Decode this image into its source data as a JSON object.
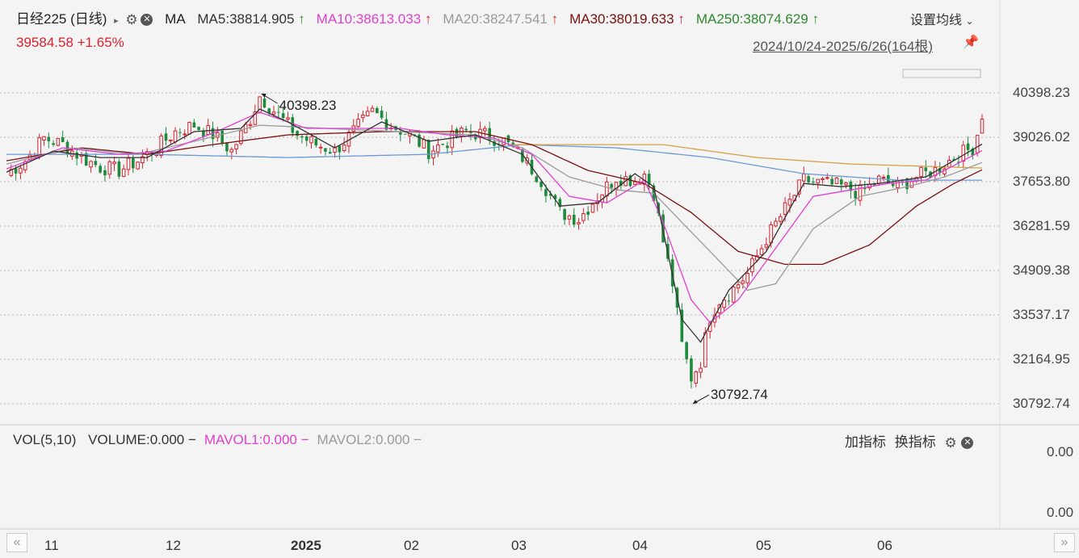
{
  "header": {
    "title": "日经225 (日线)",
    "ma_label": "MA",
    "ma_items": [
      {
        "label": "MA5:38814.905",
        "arrow": "↑",
        "color": "#333333"
      },
      {
        "label": "MA10:38613.033",
        "arrow": "↑",
        "color": "#e040d0"
      },
      {
        "label": "MA20:38247.541",
        "arrow": "↑",
        "color": "#9a9a9a"
      },
      {
        "label": "MA30:38019.633",
        "arrow": "↑",
        "color": "#7a1010"
      },
      {
        "label": "MA250:38074.629",
        "arrow": "↑",
        "color": "#2e8a2e"
      }
    ],
    "settings_label": "设置均线",
    "price": "39584.58 +1.65%",
    "range": "2024/10/24-2025/6/26(164根)"
  },
  "volume_panel": {
    "title": "VOL(5,10)",
    "items": [
      {
        "label": "VOLUME:0.000",
        "color": "#333333"
      },
      {
        "label": "MAVOL1:0.000",
        "color": "#e040d0"
      },
      {
        "label": "MAVOL2:0.000",
        "color": "#9a9a9a"
      }
    ],
    "add_indicator": "加指标",
    "switch_indicator": "换指标",
    "yticks": [
      "0.00",
      "0.00"
    ]
  },
  "colors": {
    "up": "#d9232e",
    "down": "#1e8a3c",
    "ma250": "#d4a246",
    "ma_blue": "#6a9ad4"
  },
  "chart_data": {
    "type": "candlestick",
    "y_ticks": [
      "40398.23",
      "39026.02",
      "37653.80",
      "36281.59",
      "34909.38",
      "33537.17",
      "32164.95",
      "30792.74"
    ],
    "ylim": [
      30792.74,
      40398.23
    ],
    "x_ticks": [
      "11",
      "12",
      "2025",
      "02",
      "03",
      "04",
      "05",
      "06"
    ],
    "annotations": [
      {
        "text": "40398.23",
        "type": "high"
      },
      {
        "text": "30792.74",
        "type": "low"
      }
    ],
    "close_path": [
      [
        0,
        37900
      ],
      [
        4,
        38300
      ],
      [
        8,
        39000
      ],
      [
        12,
        38800
      ],
      [
        16,
        38400
      ],
      [
        20,
        38100
      ],
      [
        24,
        38000
      ],
      [
        28,
        38300
      ],
      [
        32,
        38700
      ],
      [
        36,
        39200
      ],
      [
        40,
        39400
      ],
      [
        44,
        39100
      ],
      [
        48,
        38600
      ],
      [
        52,
        39600
      ],
      [
        54,
        40300
      ],
      [
        58,
        39700
      ],
      [
        62,
        39100
      ],
      [
        66,
        38800
      ],
      [
        70,
        38600
      ],
      [
        74,
        39200
      ],
      [
        78,
        39800
      ],
      [
        82,
        39400
      ],
      [
        86,
        39100
      ],
      [
        90,
        38600
      ],
      [
        94,
        38900
      ],
      [
        98,
        39200
      ],
      [
        102,
        39100
      ],
      [
        106,
        38900
      ],
      [
        110,
        38400
      ],
      [
        114,
        37700
      ],
      [
        118,
        36700
      ],
      [
        122,
        36500
      ],
      [
        126,
        37200
      ],
      [
        130,
        37800
      ],
      [
        134,
        37700
      ],
      [
        136,
        37900
      ],
      [
        138,
        37300
      ],
      [
        140,
        35800
      ],
      [
        142,
        34500
      ],
      [
        144,
        32600
      ],
      [
        146,
        31600
      ],
      [
        148,
        32100
      ],
      [
        150,
        33500
      ],
      [
        152,
        34000
      ],
      [
        154,
        34200
      ],
      [
        158,
        34800
      ],
      [
        162,
        35900
      ],
      [
        166,
        36800
      ],
      [
        170,
        37700
      ],
      [
        174,
        37600
      ],
      [
        178,
        37500
      ],
      [
        182,
        37300
      ],
      [
        186,
        37700
      ],
      [
        190,
        37500
      ],
      [
        194,
        37800
      ],
      [
        198,
        38000
      ],
      [
        202,
        38400
      ],
      [
        206,
        38700
      ],
      [
        208,
        39584.58
      ]
    ],
    "ma5_path": [
      [
        0,
        37950
      ],
      [
        10,
        38600
      ],
      [
        20,
        38400
      ],
      [
        30,
        38400
      ],
      [
        40,
        39200
      ],
      [
        50,
        39300
      ],
      [
        54,
        39900
      ],
      [
        60,
        39500
      ],
      [
        70,
        38700
      ],
      [
        80,
        39500
      ],
      [
        90,
        38900
      ],
      [
        100,
        39100
      ],
      [
        110,
        38500
      ],
      [
        118,
        36900
      ],
      [
        126,
        37000
      ],
      [
        134,
        37900
      ],
      [
        138,
        37500
      ],
      [
        144,
        33400
      ],
      [
        148,
        32700
      ],
      [
        154,
        34300
      ],
      [
        162,
        35500
      ],
      [
        170,
        37600
      ],
      [
        178,
        37500
      ],
      [
        186,
        37600
      ],
      [
        196,
        37800
      ],
      [
        208,
        38815
      ]
    ],
    "ma10_path": [
      [
        0,
        38050
      ],
      [
        12,
        38700
      ],
      [
        24,
        38500
      ],
      [
        34,
        38600
      ],
      [
        44,
        39150
      ],
      [
        54,
        39800
      ],
      [
        64,
        39300
      ],
      [
        74,
        39300
      ],
      [
        84,
        39300
      ],
      [
        94,
        39100
      ],
      [
        104,
        39000
      ],
      [
        112,
        38500
      ],
      [
        120,
        37200
      ],
      [
        128,
        37000
      ],
      [
        136,
        37700
      ],
      [
        140,
        36400
      ],
      [
        146,
        34000
      ],
      [
        150,
        33300
      ],
      [
        156,
        34000
      ],
      [
        164,
        35600
      ],
      [
        172,
        37200
      ],
      [
        180,
        37400
      ],
      [
        188,
        37600
      ],
      [
        196,
        37700
      ],
      [
        208,
        38613
      ]
    ],
    "ma20_path": [
      [
        0,
        38200
      ],
      [
        14,
        38700
      ],
      [
        28,
        38500
      ],
      [
        40,
        38900
      ],
      [
        54,
        39400
      ],
      [
        68,
        39300
      ],
      [
        84,
        39200
      ],
      [
        100,
        39100
      ],
      [
        110,
        38700
      ],
      [
        120,
        37800
      ],
      [
        130,
        37400
      ],
      [
        138,
        37300
      ],
      [
        148,
        35800
      ],
      [
        158,
        34300
      ],
      [
        164,
        34500
      ],
      [
        172,
        36200
      ],
      [
        182,
        37200
      ],
      [
        192,
        37500
      ],
      [
        200,
        37800
      ],
      [
        208,
        38248
      ]
    ],
    "ma30_path": [
      [
        0,
        38300
      ],
      [
        16,
        38700
      ],
      [
        30,
        38500
      ],
      [
        44,
        38800
      ],
      [
        60,
        39100
      ],
      [
        80,
        39200
      ],
      [
        100,
        39200
      ],
      [
        112,
        38800
      ],
      [
        124,
        38000
      ],
      [
        136,
        37600
      ],
      [
        146,
        36700
      ],
      [
        156,
        35500
      ],
      [
        166,
        35100
      ],
      [
        174,
        35100
      ],
      [
        184,
        35700
      ],
      [
        194,
        36900
      ],
      [
        202,
        37600
      ],
      [
        208,
        38020
      ]
    ],
    "ma250_path": [
      [
        108,
        38800
      ],
      [
        140,
        38800
      ],
      [
        160,
        38400
      ],
      [
        180,
        38200
      ],
      [
        208,
        38075
      ]
    ],
    "ma_blue_path": [
      [
        0,
        38500
      ],
      [
        30,
        38500
      ],
      [
        60,
        38400
      ],
      [
        90,
        38500
      ],
      [
        110,
        38800
      ],
      [
        130,
        38700
      ],
      [
        150,
        38400
      ],
      [
        170,
        37900
      ],
      [
        190,
        37700
      ],
      [
        208,
        37700
      ]
    ]
  }
}
